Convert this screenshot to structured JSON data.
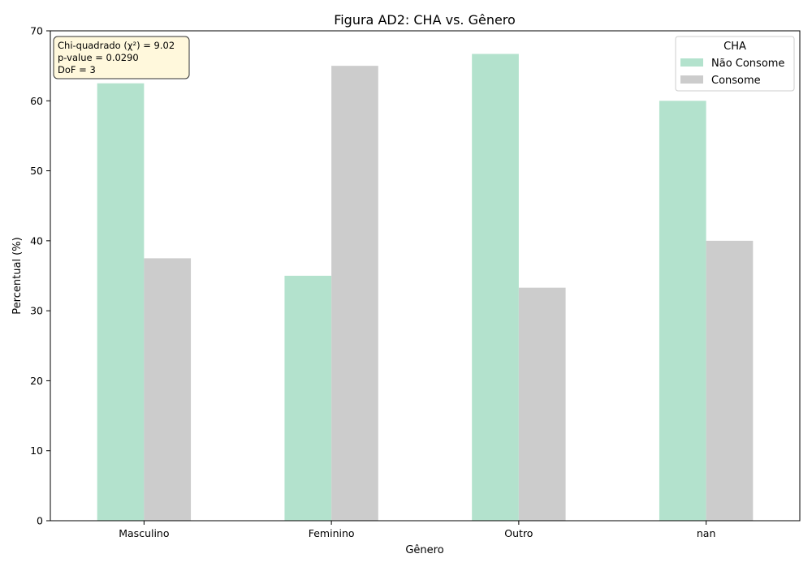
{
  "colors": {
    "series": [
      "#b3e2cd",
      "#cccccc"
    ],
    "annotation_bg": "#fff8dc",
    "annotation_border": "#333333",
    "axis": "#000000"
  },
  "chart_data": {
    "type": "bar",
    "title": "Figura AD2: CHA vs. Gênero",
    "xlabel": "Gênero",
    "ylabel": "Percentual (%)",
    "categories": [
      "Masculino",
      "Feminino",
      "Outro",
      "nan"
    ],
    "series": [
      {
        "name": "Não Consome",
        "values": [
          62.5,
          35.0,
          66.7,
          60.0
        ]
      },
      {
        "name": "Consome",
        "values": [
          37.5,
          65.0,
          33.3,
          40.0
        ]
      }
    ],
    "ylim": [
      0,
      70
    ],
    "yticks": [
      0,
      10,
      20,
      30,
      40,
      50,
      60,
      70
    ],
    "grid": false,
    "legend": {
      "title": "CHA",
      "position": "top-right"
    },
    "annotation": {
      "position": "top-left",
      "lines": [
        "Chi-quadrado (χ²) = 9.02",
        "p-value = 0.0290",
        "DoF = 3"
      ]
    }
  }
}
